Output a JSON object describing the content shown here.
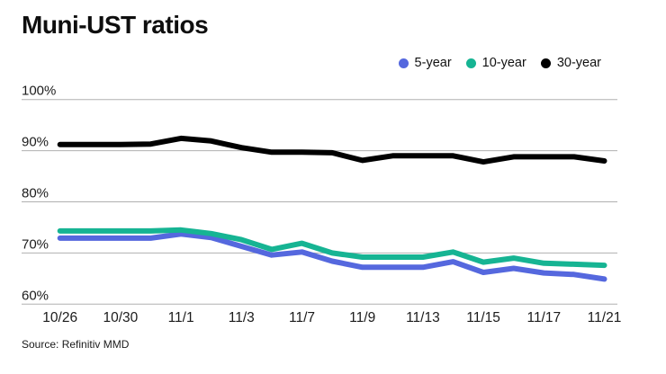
{
  "title": "Muni-UST ratios",
  "source": "Source: Refinitiv MMD",
  "colors": {
    "five_year": "#5568de",
    "ten_year": "#16b493",
    "thirty_year": "#000000",
    "grid": "#b0b0b0",
    "text": "#1b1b1b"
  },
  "chart_data": {
    "type": "line",
    "title": "Muni-UST ratios",
    "x": [
      "10/26",
      "10/27",
      "10/30",
      "10/31",
      "11/1",
      "11/2",
      "11/3",
      "11/6",
      "11/7",
      "11/8",
      "11/9",
      "11/10",
      "11/13",
      "11/14",
      "11/15",
      "11/16",
      "11/17",
      "11/20",
      "11/21"
    ],
    "x_tick_labels": [
      "10/26",
      "10/30",
      "11/1",
      "11/3",
      "11/7",
      "11/9",
      "11/13",
      "11/15",
      "11/17",
      "11/21"
    ],
    "x_tick_every": 2,
    "y_ticks": [
      60,
      70,
      80,
      90,
      100
    ],
    "y_tick_suffix": "%",
    "ylim": [
      60,
      100
    ],
    "grid": true,
    "legend_position": "top-right",
    "series": [
      {
        "name": "5-year",
        "color": "#5568de",
        "values": [
          72.9,
          72.9,
          72.9,
          72.9,
          73.7,
          73.0,
          71.3,
          69.6,
          70.2,
          68.4,
          67.2,
          67.2,
          67.2,
          68.3,
          66.2,
          67.0,
          66.1,
          65.8,
          64.9
        ]
      },
      {
        "name": "10-year",
        "color": "#16b493",
        "values": [
          74.3,
          74.3,
          74.3,
          74.3,
          74.5,
          73.8,
          72.6,
          70.7,
          71.9,
          70.0,
          69.2,
          69.2,
          69.2,
          70.2,
          68.2,
          69.0,
          68.0,
          67.8,
          67.6
        ]
      },
      {
        "name": "30-year",
        "color": "#000000",
        "values": [
          91.2,
          91.2,
          91.2,
          91.3,
          92.4,
          91.9,
          90.6,
          89.7,
          89.7,
          89.6,
          88.1,
          89.0,
          89.0,
          89.0,
          87.8,
          88.8,
          88.8,
          88.8,
          88.0
        ]
      }
    ]
  }
}
